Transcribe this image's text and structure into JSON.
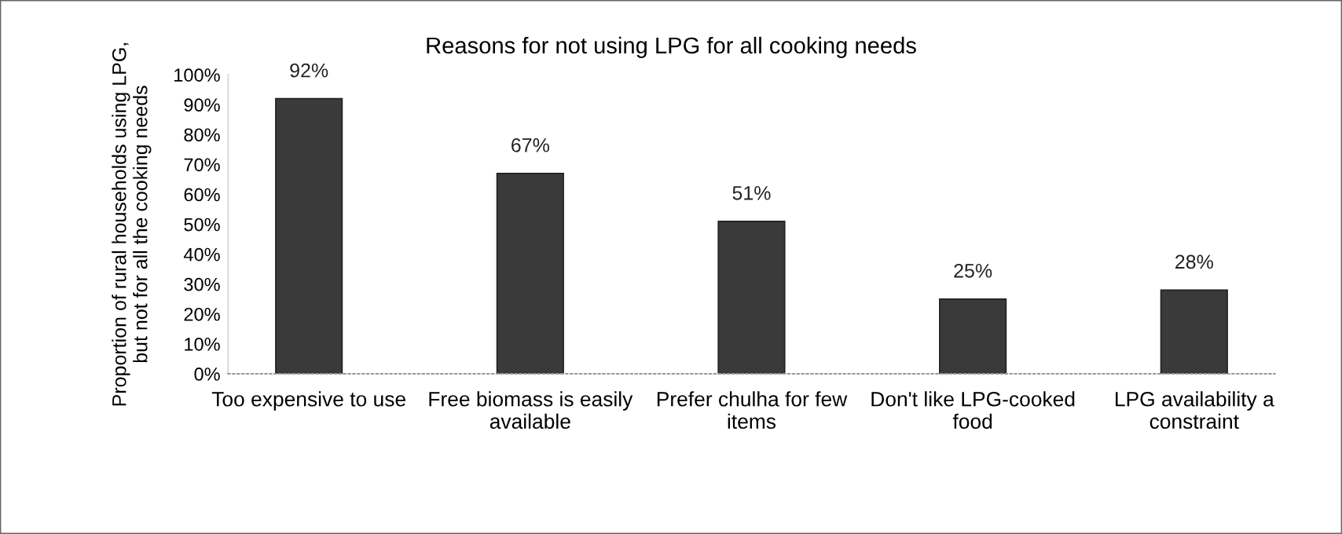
{
  "chart_data": {
    "type": "bar",
    "title": "Reasons for not using LPG for all cooking needs",
    "ylabel": "Proportion of rural households using LPG,\nbut not for all the cooking needs",
    "categories": [
      "Too expensive to use",
      "Free biomass is easily\navailable",
      "Prefer chulha for few\nitems",
      "Don't like LPG-cooked\nfood",
      "LPG availability a\nconstraint"
    ],
    "values": [
      92,
      67,
      51,
      25,
      28
    ],
    "value_labels": [
      "92%",
      "67%",
      "51%",
      "25%",
      "28%"
    ],
    "color": "#3a3a3a",
    "ylim": [
      0,
      100
    ],
    "yticks": [
      {
        "value": 0,
        "label": "0%"
      },
      {
        "value": 10,
        "label": "10%"
      },
      {
        "value": 20,
        "label": "20%"
      },
      {
        "value": 30,
        "label": "30%"
      },
      {
        "value": 40,
        "label": "40%"
      },
      {
        "value": 50,
        "label": "50%"
      },
      {
        "value": 60,
        "label": "60%"
      },
      {
        "value": 70,
        "label": "70%"
      },
      {
        "value": 80,
        "label": "80%"
      },
      {
        "value": 90,
        "label": "90%"
      },
      {
        "value": 100,
        "label": "100%"
      }
    ],
    "grid": false
  }
}
